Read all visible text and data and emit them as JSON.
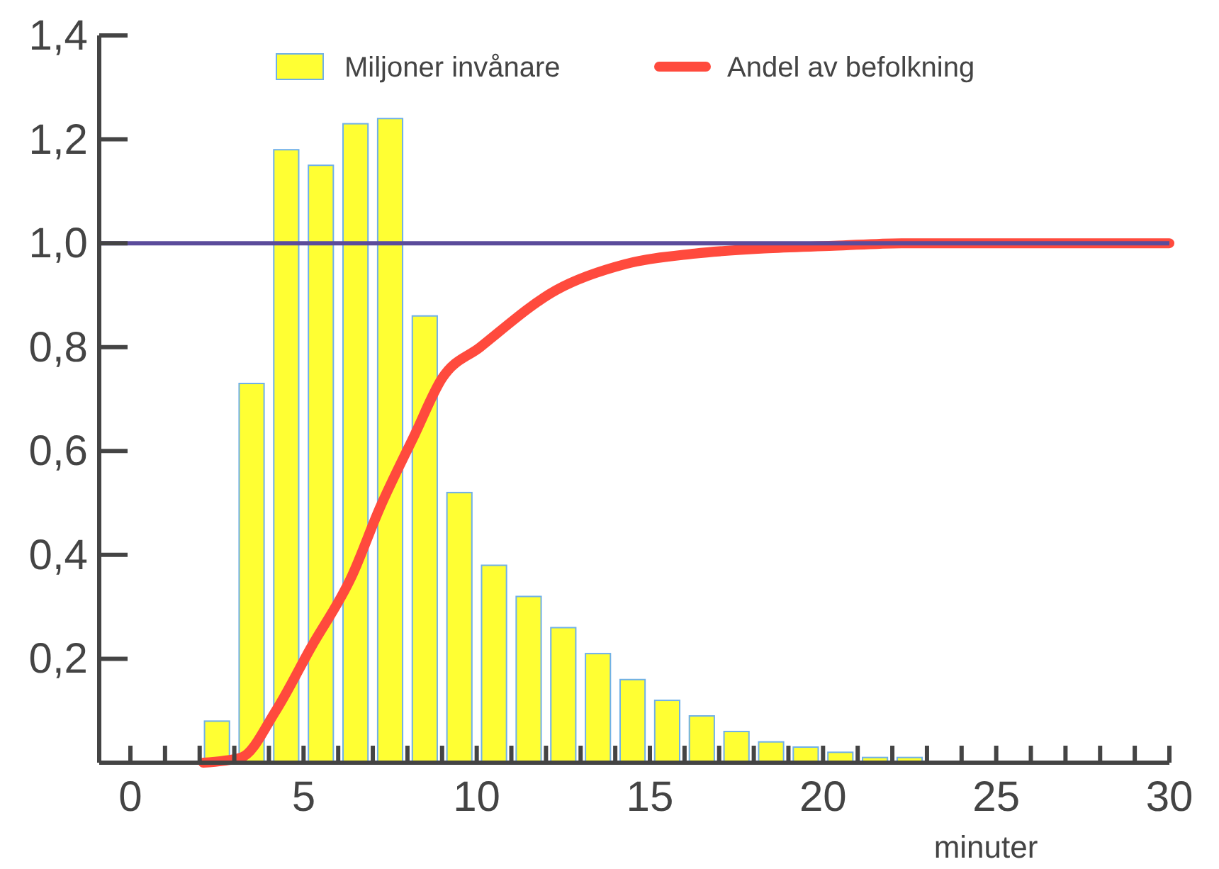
{
  "chart_data": {
    "type": "bar",
    "xlabel": "minuter",
    "xlim": [
      -0.9,
      30
    ],
    "ylim": [
      0,
      1.4
    ],
    "xticks": [
      {
        "value": 0,
        "label": "0"
      },
      {
        "value": 1,
        "label": null
      },
      {
        "value": 2,
        "label": null
      },
      {
        "value": 3,
        "label": null
      },
      {
        "value": 4,
        "label": null
      },
      {
        "value": 5,
        "label": "5"
      },
      {
        "value": 6,
        "label": null
      },
      {
        "value": 7,
        "label": null
      },
      {
        "value": 8,
        "label": null
      },
      {
        "value": 9,
        "label": null
      },
      {
        "value": 10,
        "label": "10"
      },
      {
        "value": 11,
        "label": null
      },
      {
        "value": 12,
        "label": null
      },
      {
        "value": 13,
        "label": null
      },
      {
        "value": 14,
        "label": null
      },
      {
        "value": 15,
        "label": "15"
      },
      {
        "value": 16,
        "label": null
      },
      {
        "value": 17,
        "label": null
      },
      {
        "value": 18,
        "label": null
      },
      {
        "value": 19,
        "label": null
      },
      {
        "value": 20,
        "label": "20"
      },
      {
        "value": 21,
        "label": null
      },
      {
        "value": 22,
        "label": null
      },
      {
        "value": 23,
        "label": null
      },
      {
        "value": 24,
        "label": null
      },
      {
        "value": 25,
        "label": "25"
      },
      {
        "value": 26,
        "label": null
      },
      {
        "value": 27,
        "label": null
      },
      {
        "value": 28,
        "label": null
      },
      {
        "value": 29,
        "label": null
      },
      {
        "value": 30,
        "label": "30"
      }
    ],
    "yticks": [
      {
        "value": 0.2,
        "label": "0,2"
      },
      {
        "value": 0.4,
        "label": "0,4"
      },
      {
        "value": 0.6,
        "label": "0,6"
      },
      {
        "value": 0.8,
        "label": "0,8"
      },
      {
        "value": 1.0,
        "label": "1,0"
      },
      {
        "value": 1.2,
        "label": "1,2"
      },
      {
        "value": 1.4,
        "label": "1,4"
      }
    ],
    "grid": false,
    "legend": "top",
    "series": [
      {
        "name": "Miljoner invånare",
        "color": "#ffff33",
        "x": [
          2.5,
          3.5,
          4.5,
          5.5,
          6.5,
          7.5,
          8.5,
          9.5,
          10.5,
          11.5,
          12.5,
          13.5,
          14.5,
          15.5,
          16.5,
          17.5,
          18.5,
          19.5,
          20.5,
          21.5,
          22.5
        ],
        "values": [
          0.08,
          0.73,
          1.18,
          1.15,
          1.23,
          1.24,
          0.86,
          0.52,
          0.38,
          0.32,
          0.26,
          0.21,
          0.16,
          0.12,
          0.09,
          0.06,
          0.04,
          0.03,
          0.02,
          0.01,
          0.01
        ]
      },
      {
        "type": "line",
        "name": "Andel av befolkning",
        "color": "#ff4a3d",
        "x": [
          2.1,
          3.2,
          4.2,
          5.2,
          6.4,
          7.2,
          8.2,
          9,
          10.1,
          12.3,
          14.3,
          16.3,
          18.3,
          20.3,
          22.3,
          30
        ],
        "values": [
          0,
          0.01,
          0.1,
          0.22,
          0.36,
          0.49,
          0.63,
          0.74,
          0.8,
          0.91,
          0.96,
          0.98,
          0.99,
          0.995,
          1.0,
          1.0
        ]
      }
    ],
    "ref_lines": [
      {
        "axis": "y",
        "value": 1.0,
        "color": "#5b4b9b"
      }
    ]
  }
}
